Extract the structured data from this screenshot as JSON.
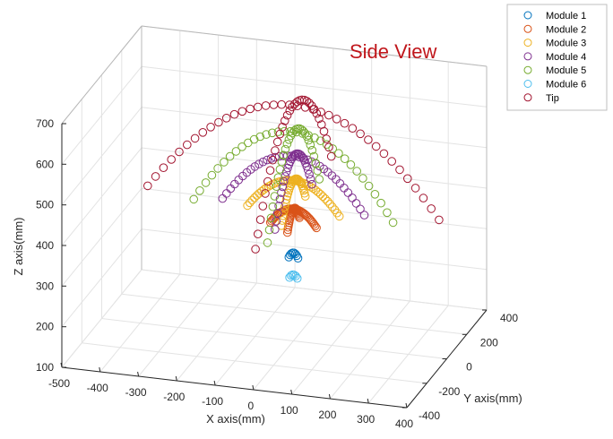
{
  "chart_data": {
    "type": "scatter",
    "projection": "3d",
    "title": "",
    "annotation": "Side View",
    "annotation_color": "#c0161b",
    "xlabel": "X axis(mm)",
    "ylabel": "Y axis(mm)",
    "zlabel": "Z axis(mm)",
    "xlim": [
      -500,
      400
    ],
    "ylim": [
      -400,
      400
    ],
    "zlim": [
      100,
      700
    ],
    "xticks": [
      -500,
      -400,
      -300,
      -200,
      -100,
      0,
      100,
      200,
      300,
      400
    ],
    "yticks": [
      -400,
      -200,
      0,
      200,
      400
    ],
    "zticks": [
      100,
      200,
      300,
      400,
      500,
      600,
      700
    ],
    "grid": true,
    "marker": "open-circle",
    "legend": {
      "position": "top-right",
      "entries": [
        "Module 1",
        "Module 2",
        "Module 3",
        "Module 4",
        "Module 5",
        "Module 6",
        "Tip"
      ]
    },
    "series": [
      {
        "name": "Module 1",
        "color": "#0072bd",
        "arcs": [
          {
            "dir": "x",
            "count": 8,
            "center": [
              0,
              0,
              305
            ],
            "spread": 12,
            "rise": 12
          }
        ]
      },
      {
        "name": "Module 2",
        "color": "#d95319",
        "arcs": [
          {
            "dir": "x",
            "count": 40,
            "center": [
              0,
              0,
              385
            ],
            "spread": 60,
            "rise": 40
          },
          {
            "dir": "y",
            "count": 30,
            "center": [
              0,
              0,
              385
            ],
            "spread": 60,
            "rise": 40
          }
        ]
      },
      {
        "name": "Module 3",
        "color": "#edb120",
        "arcs": [
          {
            "dir": "x",
            "count": 40,
            "center": [
              0,
              0,
              420
            ],
            "spread": 120,
            "rise": 75
          },
          {
            "dir": "y",
            "count": 30,
            "center": [
              0,
              0,
              420
            ],
            "spread": 120,
            "rise": 75
          }
        ]
      },
      {
        "name": "Module 4",
        "color": "#7e2f8e",
        "arcs": [
          {
            "dir": "x",
            "count": 36,
            "center": [
              0,
              0,
              430
            ],
            "spread": 185,
            "rise": 125
          },
          {
            "dir": "y",
            "count": 30,
            "center": [
              0,
              0,
              430
            ],
            "spread": 185,
            "rise": 125
          }
        ]
      },
      {
        "name": "Module 5",
        "color": "#77ac30",
        "arcs": [
          {
            "dir": "x",
            "count": 34,
            "center": [
              0,
              0,
              420
            ],
            "spread": 260,
            "rise": 195
          },
          {
            "dir": "y",
            "count": 30,
            "center": [
              0,
              0,
              420
            ],
            "spread": 260,
            "rise": 195
          }
        ]
      },
      {
        "name": "Module 6",
        "color": "#4dbeee",
        "arcs": [
          {
            "dir": "x",
            "count": 6,
            "center": [
              0,
              0,
              255
            ],
            "spread": 10,
            "rise": 8
          }
        ]
      },
      {
        "name": "Tip",
        "color": "#a2142f",
        "arcs": [
          {
            "dir": "x",
            "count": 38,
            "center": [
              0,
              0,
              440
            ],
            "spread": 380,
            "rise": 240
          },
          {
            "dir": "y",
            "count": 32,
            "center": [
              0,
              0,
              440
            ],
            "spread": 380,
            "rise": 240
          }
        ]
      }
    ]
  }
}
